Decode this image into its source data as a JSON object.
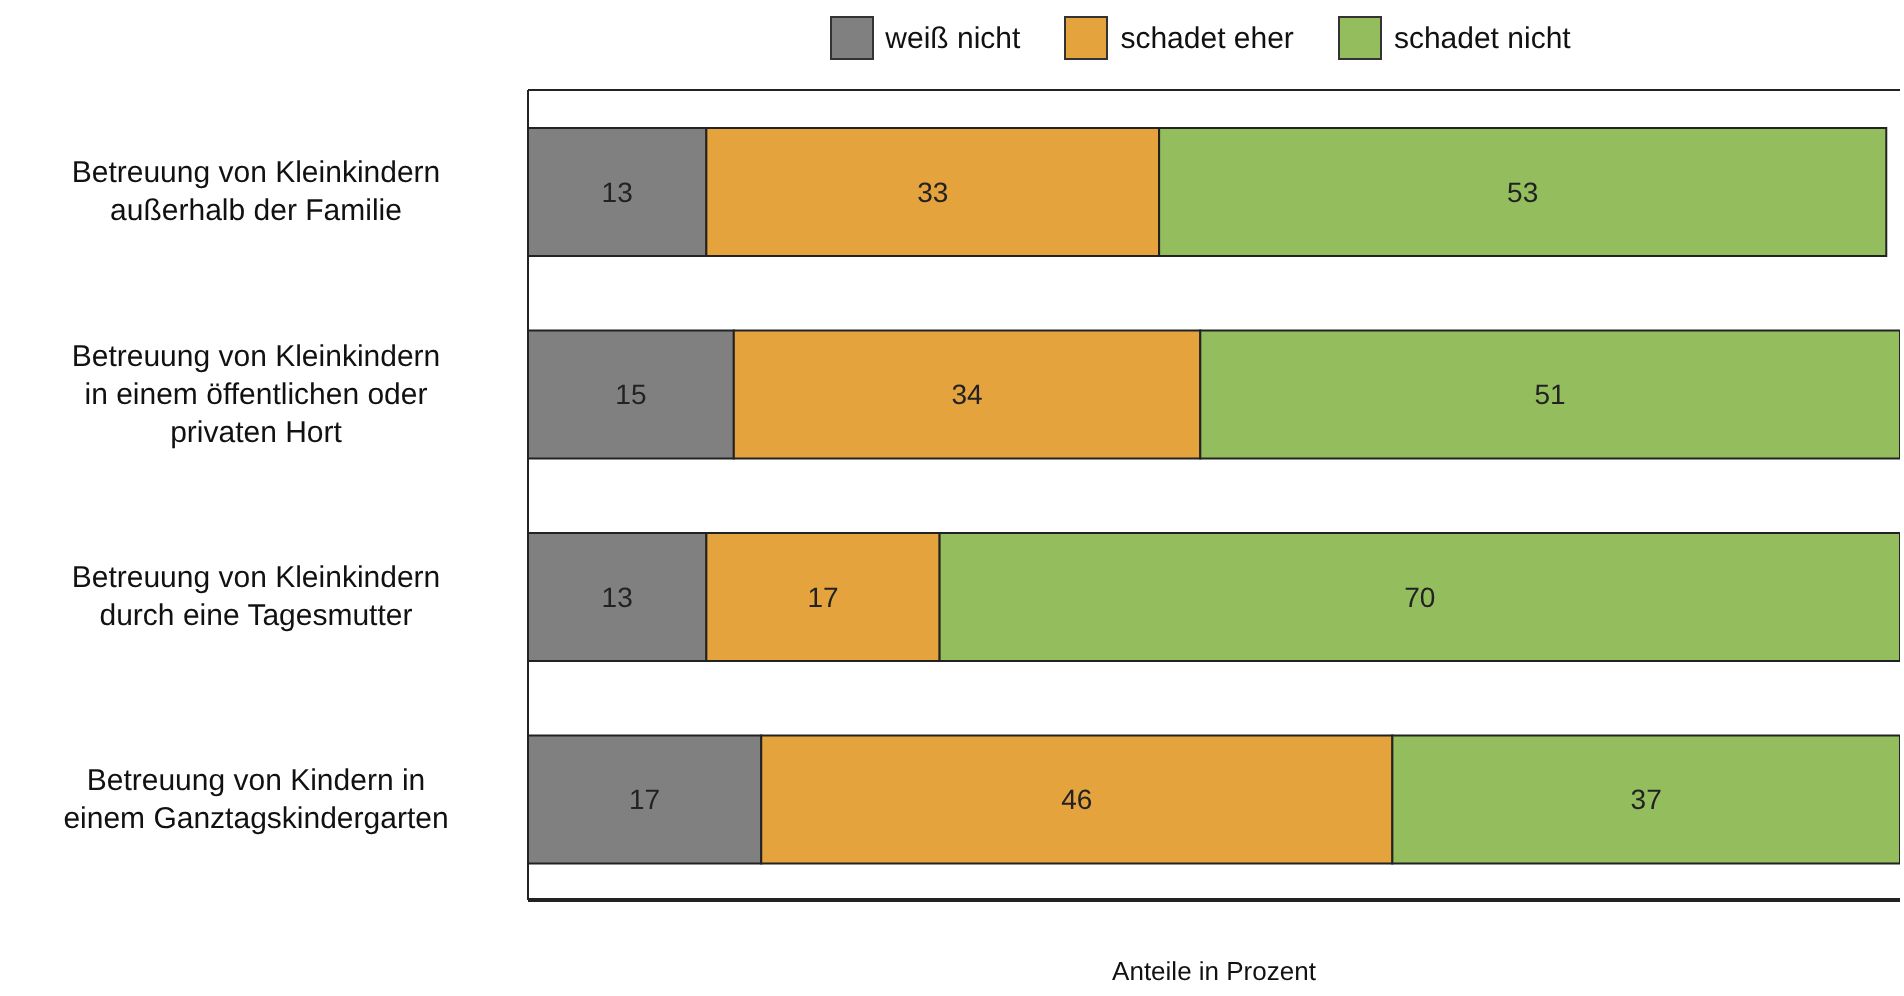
{
  "chart_data": {
    "type": "bar",
    "orientation": "horizontal",
    "stacked": true,
    "xlabel": "Anteile in Prozent",
    "categories": [
      "Betreuung von Kleinkindern außerhalb der Familie",
      "Betreuung von Kleinkindern in einem öffentlichen oder privaten Hort",
      "Betreuung von Kleinkindern durch eine Tagesmutter",
      "Betreuung von Kindern in einem Ganztagskindergarten"
    ],
    "series": [
      {
        "name": "weiß nicht",
        "color": "#808080",
        "values": [
          13,
          15,
          13,
          17
        ]
      },
      {
        "name": "schadet eher",
        "color": "#e5a33e",
        "values": [
          33,
          34,
          17,
          46
        ]
      },
      {
        "name": "schadet nicht",
        "color": "#94bd5e",
        "values": [
          53,
          51,
          70,
          37
        ]
      }
    ],
    "xlim": [
      0,
      100
    ],
    "tick_labels": "y",
    "data_labels": true,
    "legend": "top",
    "grid": false
  }
}
